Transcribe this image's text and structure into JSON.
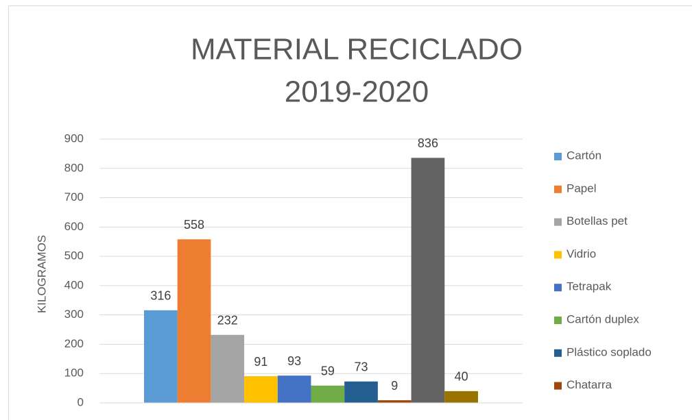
{
  "chart_data": {
    "type": "bar",
    "title": [
      "MATERIAL RECICLADO",
      "2019-2020"
    ],
    "y_label": "KILOGRAMOS",
    "ylim": [
      0,
      900
    ],
    "yticks": [
      0,
      100,
      200,
      300,
      400,
      500,
      600,
      700,
      800,
      900
    ],
    "grid": true,
    "legend": "right",
    "series": [
      {
        "name": "Cartón",
        "color": "#5b9bd5",
        "values": [
          316
        ]
      },
      {
        "name": "Papel",
        "color": "#ed7d31",
        "values": [
          558
        ]
      },
      {
        "name": "Botellas pet",
        "color": "#a5a5a5",
        "values": [
          232
        ]
      },
      {
        "name": "Vidrio",
        "color": "#ffc000",
        "values": [
          91
        ]
      },
      {
        "name": "Tetrapak",
        "color": "#4472c4",
        "values": [
          93
        ]
      },
      {
        "name": "Cartón duplex",
        "color": "#70ad47",
        "values": [
          59
        ]
      },
      {
        "name": "Plástico soplado",
        "color": "#255e91",
        "values": [
          73
        ]
      },
      {
        "name": "Chatarra",
        "color": "#9e480e",
        "values": [
          9
        ]
      },
      {
        "color": "#636363",
        "values": [
          836
        ]
      },
      {
        "color": "#997300",
        "values": [
          40
        ]
      }
    ]
  }
}
